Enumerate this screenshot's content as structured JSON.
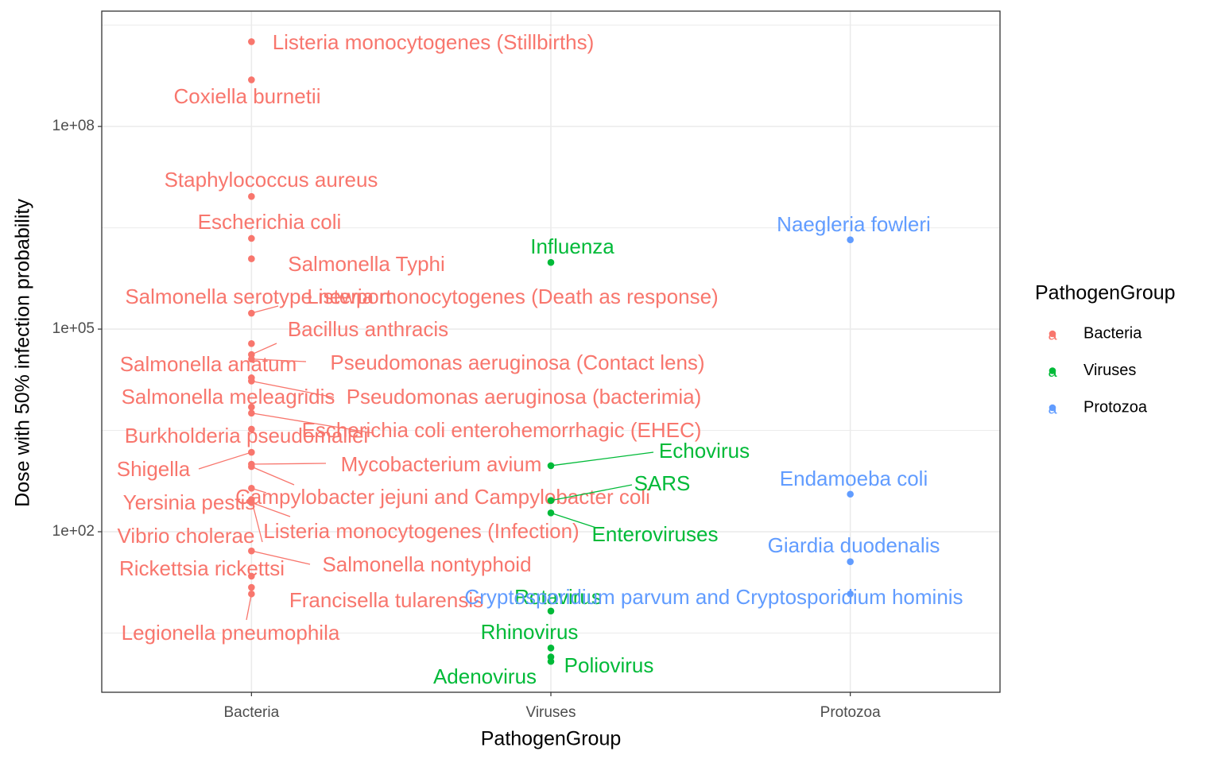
{
  "chart_data": {
    "type": "scatter",
    "x_label": "PathogenGroup",
    "y_label": "Dose with 50% infection probability",
    "legend_title": "PathogenGroup",
    "legend_key": "a",
    "categories": [
      "Bacteria",
      "Viruses",
      "Protozoa"
    ],
    "log_y": true,
    "grid": true,
    "ylim": [
      0.42,
      5100000000
    ],
    "yticks": [
      {
        "value": 100,
        "label": "1e+02"
      },
      {
        "value": 100000,
        "label": "1e+05"
      },
      {
        "value": 100000000,
        "label": "1e+08"
      }
    ],
    "series": [
      {
        "name": "Bacteria",
        "color": "#F8766D",
        "labels": [
          "Listeria monocytogenes (Stillbirths)",
          "Coxiella burnetii",
          "Staphylococcus aureus",
          "Escherichia coli",
          "Salmonella Typhi",
          "Salmonella serotype newport",
          "Listeria monocytogenes (Death as response)",
          "Bacillus anthracis",
          "Salmonella anatum",
          "Pseudomonas aeruginosa (Contact lens)",
          "Salmonella meleagridis",
          "Pseudomonas aeruginosa (bacterimia)",
          "Burkholderia pseudomallei",
          "Escherichia coli enterohemorrhagic (EHEC)",
          "Shigella",
          "Mycobacterium avium",
          "Campylobacter jejuni and Campylobacter coli",
          "Yersinia pestis",
          "Vibrio cholerae",
          "Listeria monocytogenes (Infection)",
          "Salmonella nontyphoid",
          "Rickettsia rickettsi",
          "Francisella tularensis",
          "Legionella pneumophila"
        ],
        "values": [
          1800000000,
          490000000,
          9200000,
          2200000,
          1100000,
          172000,
          61000,
          42000,
          36000,
          19000,
          17000,
          7000,
          5700,
          3300,
          1500,
          1000,
          920,
          440,
          300,
          270,
          52,
          22,
          15,
          12
        ]
      },
      {
        "name": "Viruses",
        "color": "#00BA38",
        "labels": [
          "Influenza",
          "Echovirus",
          "SARS",
          "Enteroviruses",
          "Rotavirus",
          "Rhinovirus",
          "Poliovirus",
          "Adenovirus"
        ],
        "values": [
          970000,
          950,
          290,
          190,
          6.7,
          1.9,
          1.4,
          1.2
        ]
      },
      {
        "name": "Protozoa",
        "color": "#619CFF",
        "labels": [
          "Naegleria fowleri",
          "Endamoeba coli",
          "Giardia duodenalis",
          "Cryptosporidium parvum and Cryptosporidium hominis"
        ],
        "values": [
          2100000,
          360,
          36,
          12
        ]
      }
    ]
  }
}
